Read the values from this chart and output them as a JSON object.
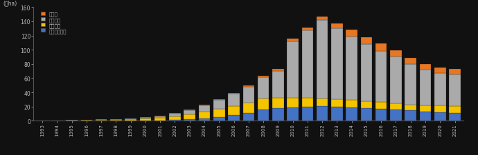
{
  "ylabel_left": "(千ha)",
  "years": [
    1993,
    1994,
    1995,
    1996,
    1997,
    1998,
    1999,
    2000,
    2001,
    2002,
    2003,
    2004,
    2005,
    2006,
    2007,
    2008,
    2009,
    2010,
    2011,
    2012,
    2013,
    2014,
    2015,
    2016,
    2017,
    2018,
    2019,
    2020,
    2021
  ],
  "series": {
    "other": [
      0.1,
      0.1,
      0.1,
      0.1,
      0.2,
      0.2,
      0.3,
      0.4,
      0.5,
      0.7,
      0.9,
      1.1,
      1.3,
      1.5,
      1.8,
      2.2,
      2.8,
      3.5,
      4.5,
      5.5,
      7.0,
      9.0,
      10.0,
      10.5,
      9.5,
      9.0,
      8.0,
      7.5,
      8.0
    ],
    "湛水直播": [
      0.1,
      0.1,
      0.2,
      0.3,
      0.5,
      0.7,
      1.0,
      1.5,
      2.5,
      4.0,
      6.0,
      9.0,
      13.0,
      17.0,
      22.0,
      30.0,
      38.0,
      80.0,
      95.0,
      110.0,
      100.0,
      90.0,
      80.0,
      72.0,
      65.0,
      57.0,
      50.0,
      46.0,
      44.0
    ],
    "乾田直播": [
      0.2,
      0.4,
      0.6,
      0.9,
      1.2,
      1.6,
      2.0,
      2.8,
      3.8,
      5.0,
      7.0,
      9.0,
      11.0,
      13.0,
      14.5,
      15.5,
      14.0,
      13.0,
      12.0,
      11.0,
      10.5,
      10.0,
      9.5,
      9.0,
      9.0,
      8.5,
      9.0,
      9.5,
      10.0
    ],
    "湛水土中直播": [
      0.0,
      0.0,
      0.0,
      0.0,
      0.0,
      0.0,
      0.0,
      0.0,
      0.0,
      1.0,
      2.0,
      3.5,
      5.5,
      8.0,
      11.0,
      16.0,
      18.0,
      19.0,
      20.0,
      20.5,
      20.0,
      19.0,
      18.0,
      17.0,
      16.0,
      14.5,
      13.0,
      12.0,
      11.0
    ]
  },
  "colors": {
    "other": "#E87722",
    "湛水直播": "#AAAAAA",
    "乾田直播": "#F5C400",
    "湛水土中直播": "#4472C4"
  },
  "legend_labels": [
    "その他",
    "湛水直播",
    "乾田直播",
    "湛水土中直播"
  ],
  "ylim": [
    0,
    160
  ],
  "yticks": [
    0,
    20,
    40,
    60,
    80,
    100,
    120,
    140,
    160
  ],
  "bg_color": "#111111",
  "text_color": "#bbbbbb",
  "bar_edge_color": "#222222"
}
